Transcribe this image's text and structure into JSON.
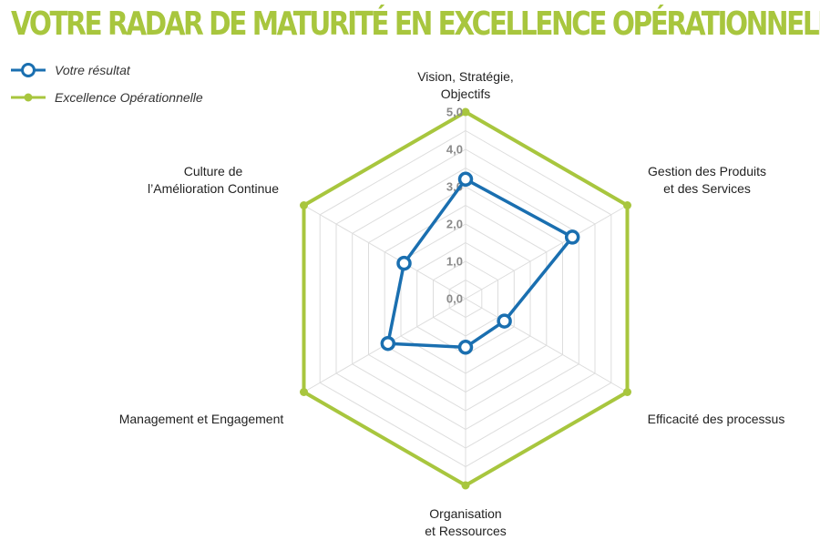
{
  "title": "VOTRE RADAR DE MATURITÉ EN EXCELLENCE OPÉRATIONNELLE",
  "colors": {
    "result": "#1a6fb0",
    "excellence": "#a8c63e",
    "title": "#a8c63e",
    "grid": "#dddddd"
  },
  "chart_data": {
    "type": "radar",
    "title": "VOTRE RADAR DE MATURITÉ EN EXCELLENCE OPÉRATIONNELLE",
    "axes": [
      [
        "Vision, Stratégie,",
        "Objectifs"
      ],
      [
        "Gestion des Produits",
        "et des Services"
      ],
      [
        "Efficacité des processus"
      ],
      [
        "Organisation",
        "et Ressources"
      ],
      [
        "Management et Engagement"
      ],
      [
        "Culture de",
        "l’Amélioration Continue"
      ]
    ],
    "ticks": [
      "0,0",
      "1,0",
      "2,0",
      "3,0",
      "4,0",
      "5,0"
    ],
    "range": [
      0,
      5
    ],
    "series": [
      {
        "name": "Votre résultat",
        "values": [
          3.2,
          3.3,
          1.2,
          1.3,
          2.4,
          1.9
        ],
        "color": "#1a6fb0",
        "marker": "hollow-circle"
      },
      {
        "name": "Excellence Opérationnelle",
        "values": [
          5,
          5,
          5,
          5,
          5,
          5
        ],
        "color": "#a8c63e",
        "marker": "dot"
      }
    ],
    "legend": "top-left",
    "grid": true
  }
}
